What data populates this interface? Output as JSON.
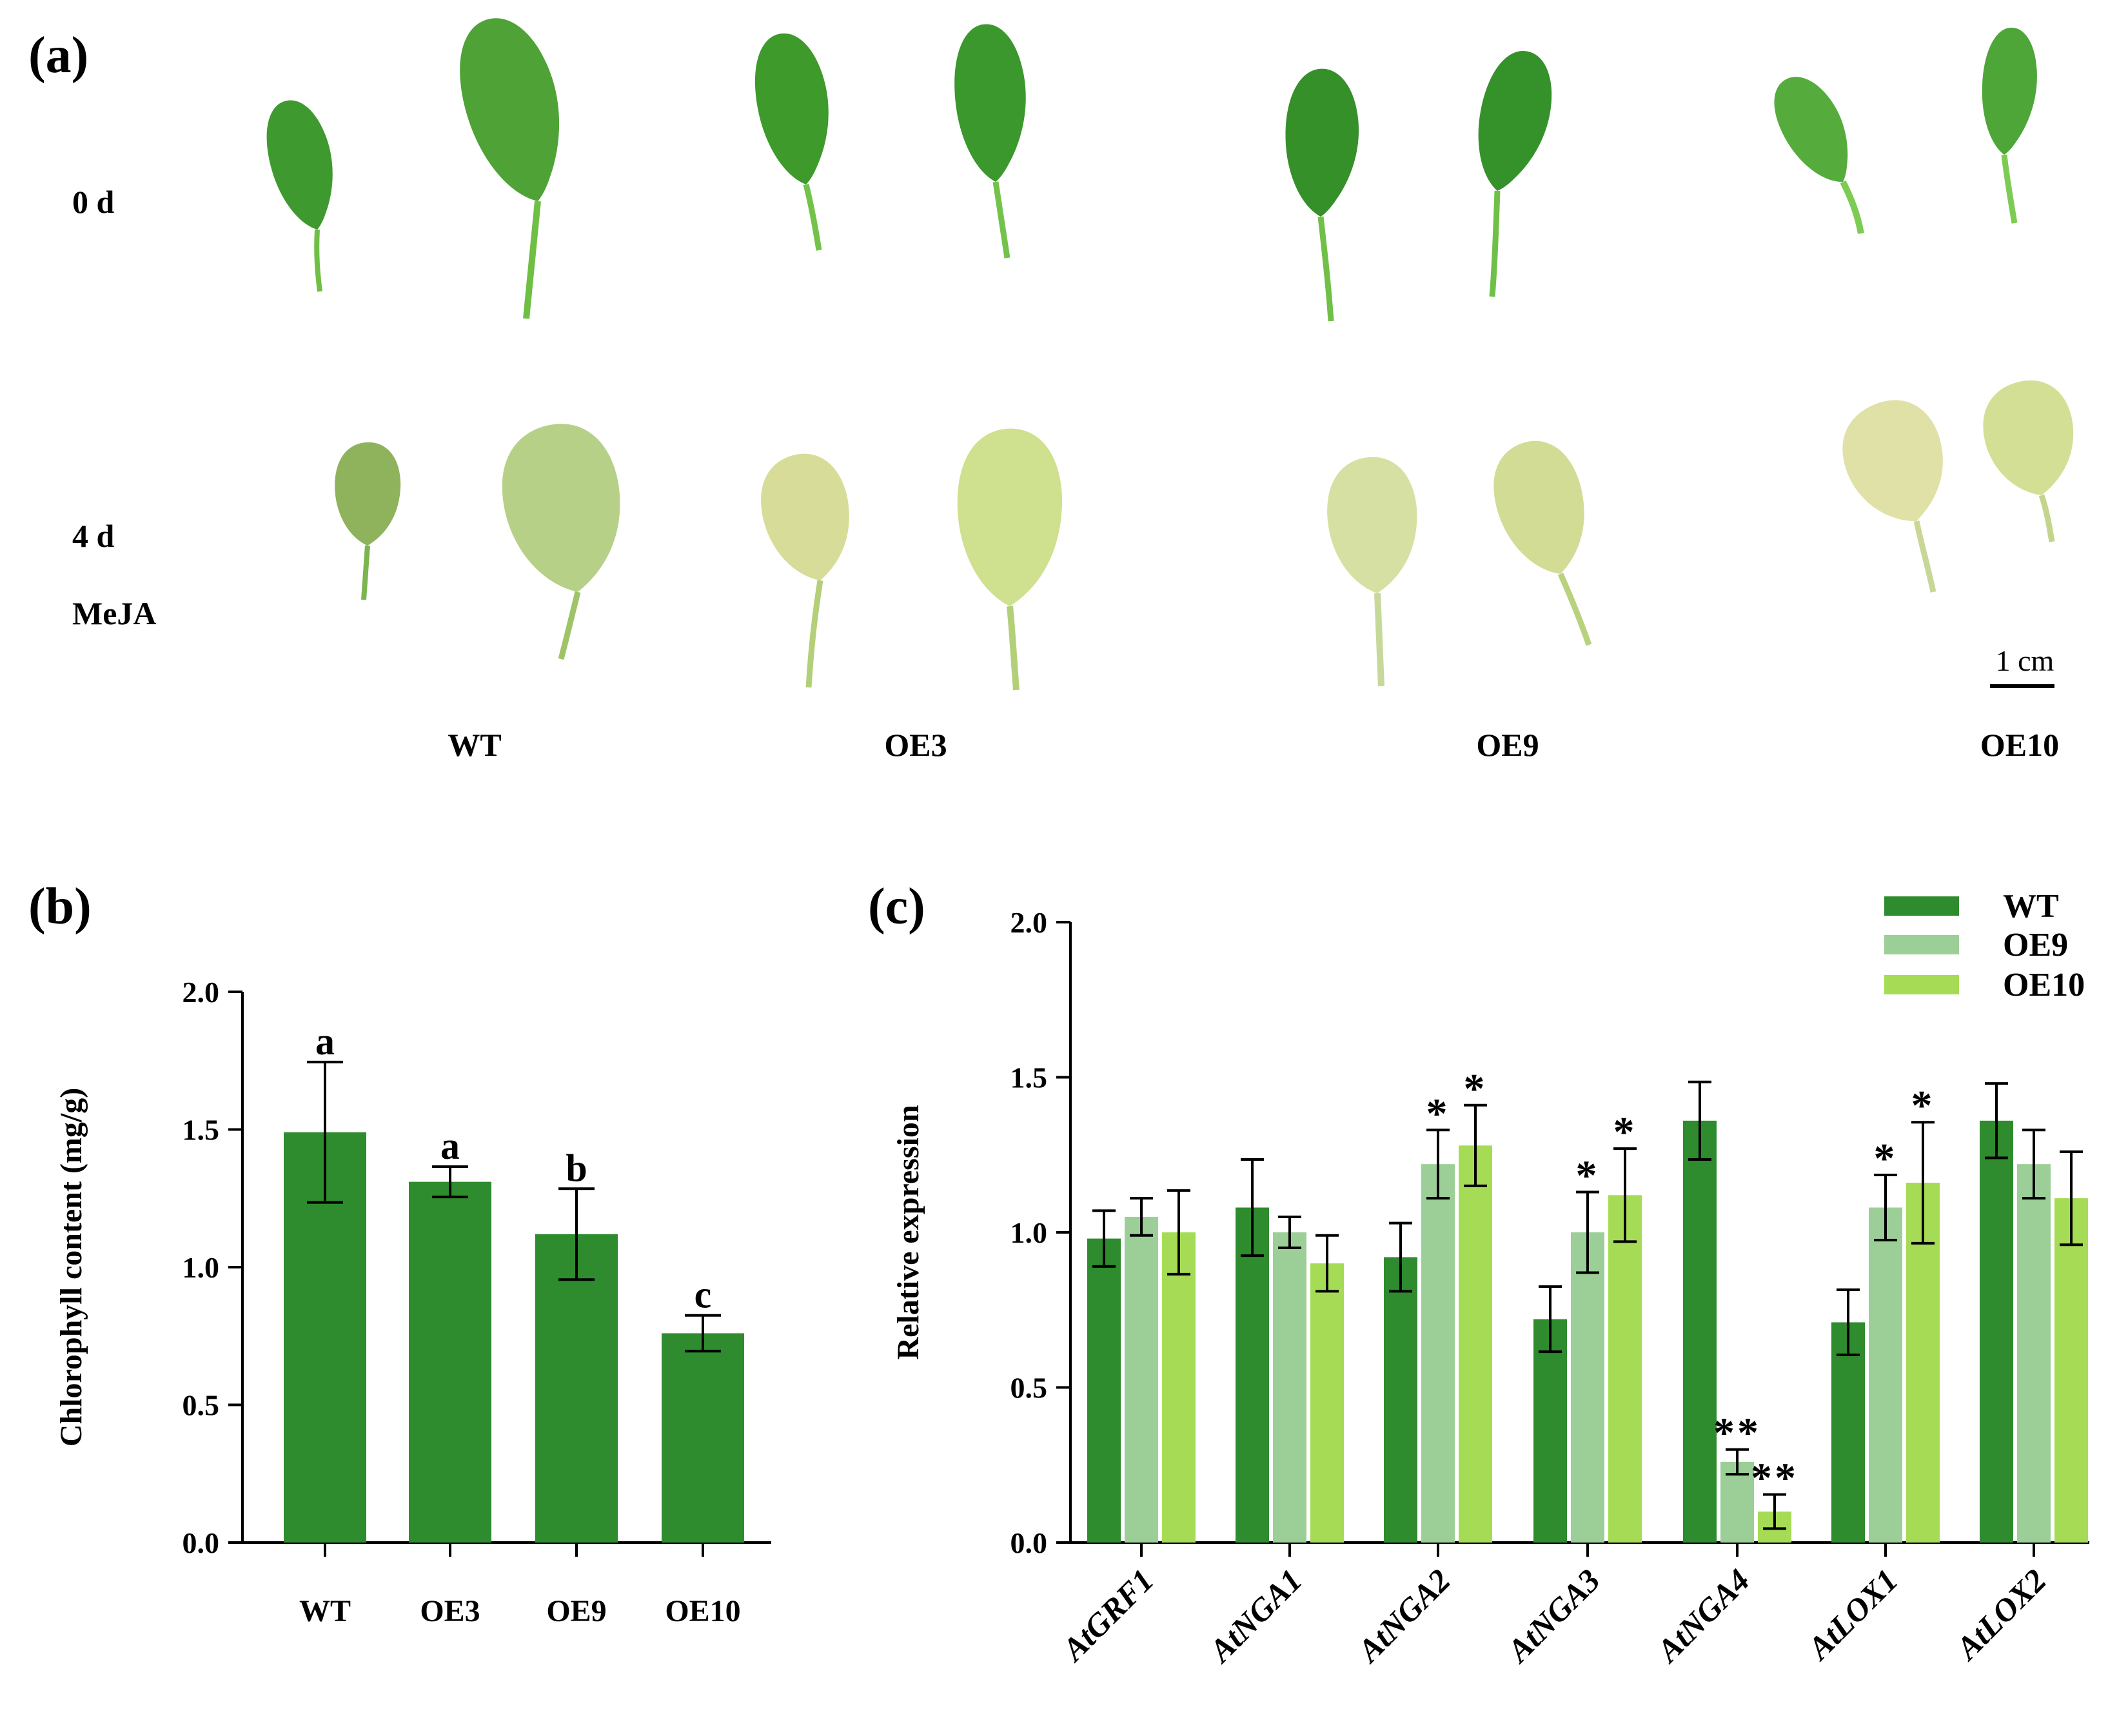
{
  "panels": {
    "a": {
      "label": "(a)",
      "row_labels": {
        "day0": "0 d",
        "day4": "4 d",
        "treatment": "MeJA"
      },
      "scale_bar": "1 cm",
      "genotypes": [
        "WT",
        "OE3",
        "OE9",
        "OE10"
      ],
      "colors": {
        "fresh_leaf": "#3f9a2c",
        "fresh_leaf_light": "#6cbd3d",
        "senescent_leaf": "#d9df9a",
        "senescent_leaf_green": "#a8c766",
        "petiole": "#7cc24a"
      }
    },
    "b": {
      "label": "(b)"
    },
    "c": {
      "label": "(c)"
    }
  },
  "chart_data": [
    {
      "id": "b",
      "type": "bar",
      "categories": [
        "WT",
        "OE3",
        "OE9",
        "OE10"
      ],
      "values": [
        1.49,
        1.31,
        1.12,
        0.76
      ],
      "errors": [
        0.255,
        0.055,
        0.165,
        0.065
      ],
      "annotations": [
        "a",
        "a",
        "b",
        "c"
      ],
      "ylabel": "Chlorophyll content (mg/g)",
      "xlabel": "",
      "ylim": [
        0,
        2.0
      ],
      "yticks": [
        "0.0",
        "0.5",
        "1.0",
        "1.5",
        "2.0"
      ],
      "color": "#2e8b2e"
    },
    {
      "id": "c",
      "type": "bar",
      "categories": [
        "AtGRF1",
        "AtNGA1",
        "AtNGA2",
        "AtNGA3",
        "AtNGA4",
        "AtLOX1",
        "AtLOX2"
      ],
      "series": [
        {
          "name": "WT",
          "color": "#2e8b2e",
          "values": [
            0.98,
            1.08,
            0.92,
            0.72,
            1.36,
            0.71,
            1.36
          ],
          "errors": [
            0.09,
            0.155,
            0.11,
            0.105,
            0.125,
            0.105,
            0.12
          ],
          "marks": [
            "",
            "",
            "",
            "",
            "",
            "",
            ""
          ]
        },
        {
          "name": "OE9",
          "color": "#9bcf97",
          "values": [
            1.05,
            1.0,
            1.22,
            1.0,
            0.26,
            1.08,
            1.22
          ],
          "errors": [
            0.06,
            0.05,
            0.11,
            0.13,
            0.04,
            0.105,
            0.11
          ],
          "marks": [
            "",
            "",
            "*",
            "*",
            "**",
            "*",
            ""
          ]
        },
        {
          "name": "OE10",
          "color": "#a6dc55",
          "values": [
            1.0,
            0.9,
            1.28,
            1.12,
            0.1,
            1.16,
            1.11
          ],
          "errors": [
            0.135,
            0.09,
            0.13,
            0.15,
            0.055,
            0.195,
            0.15
          ],
          "marks": [
            "",
            "",
            "*",
            "*",
            "**",
            "*",
            ""
          ]
        }
      ],
      "ylabel": "Relative expression",
      "xlabel": "",
      "ylim": [
        0,
        2.0
      ],
      "yticks": [
        "0.0",
        "0.5",
        "1.0",
        "1.5",
        "2.0"
      ],
      "legend_position": "top-right"
    }
  ]
}
